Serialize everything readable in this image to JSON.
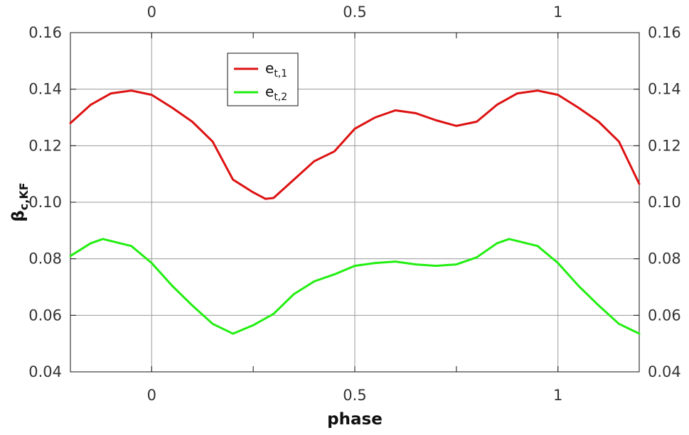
{
  "chart_data": {
    "type": "line",
    "xlabel": "phase",
    "ylabel": "β",
    "ylabel_sub": "c,KF",
    "xlim": [
      -0.2,
      1.2
    ],
    "ylim": [
      0.04,
      0.16
    ],
    "x_ticks": [
      0,
      0.5,
      1
    ],
    "x_tick_labels": [
      "0",
      "0.5",
      "1"
    ],
    "x_minor_ticks": [
      -0.25,
      0.25,
      0.75,
      1.25
    ],
    "y_ticks": [
      0.04,
      0.06,
      0.08,
      0.1,
      0.12,
      0.14,
      0.16
    ],
    "y_tick_labels": [
      "0.04",
      "0.06",
      "0.08",
      "0.10",
      "0.12",
      "0.14",
      "0.16"
    ],
    "grid": true,
    "legend_position": "top-left",
    "series": [
      {
        "name": "e",
        "name_sub": "t,1",
        "color": "#dd1111",
        "x": [
          -0.2,
          -0.15,
          -0.1,
          -0.05,
          0.0,
          0.05,
          0.1,
          0.15,
          0.2,
          0.25,
          0.28,
          0.3,
          0.35,
          0.4,
          0.45,
          0.5,
          0.55,
          0.6,
          0.65,
          0.7,
          0.75,
          0.8,
          0.85,
          0.9,
          0.95,
          1.0,
          1.05,
          1.1,
          1.15,
          1.2
        ],
        "y": [
          0.128,
          0.1345,
          0.1385,
          0.1395,
          0.138,
          0.1335,
          0.1285,
          0.1215,
          0.108,
          0.1035,
          0.1012,
          0.1015,
          0.108,
          0.1145,
          0.118,
          0.126,
          0.13,
          0.1325,
          0.1315,
          0.129,
          0.127,
          0.1285,
          0.1345,
          0.1385,
          0.1395,
          0.138,
          0.1335,
          0.1285,
          0.1215,
          0.1065
        ]
      },
      {
        "name": "e",
        "name_sub": "t,2",
        "color": "#22ee11",
        "x": [
          -0.2,
          -0.15,
          -0.12,
          -0.05,
          0.0,
          0.05,
          0.1,
          0.15,
          0.2,
          0.25,
          0.3,
          0.35,
          0.4,
          0.45,
          0.5,
          0.55,
          0.6,
          0.65,
          0.7,
          0.75,
          0.8,
          0.85,
          0.88,
          0.95,
          1.0,
          1.05,
          1.1,
          1.15,
          1.2
        ],
        "y": [
          0.081,
          0.0855,
          0.087,
          0.0845,
          0.0785,
          0.0705,
          0.0635,
          0.057,
          0.0535,
          0.0565,
          0.0605,
          0.0675,
          0.072,
          0.0745,
          0.0775,
          0.0785,
          0.079,
          0.078,
          0.0775,
          0.078,
          0.0805,
          0.0855,
          0.087,
          0.0845,
          0.0785,
          0.0705,
          0.0635,
          0.057,
          0.0535
        ]
      }
    ]
  }
}
